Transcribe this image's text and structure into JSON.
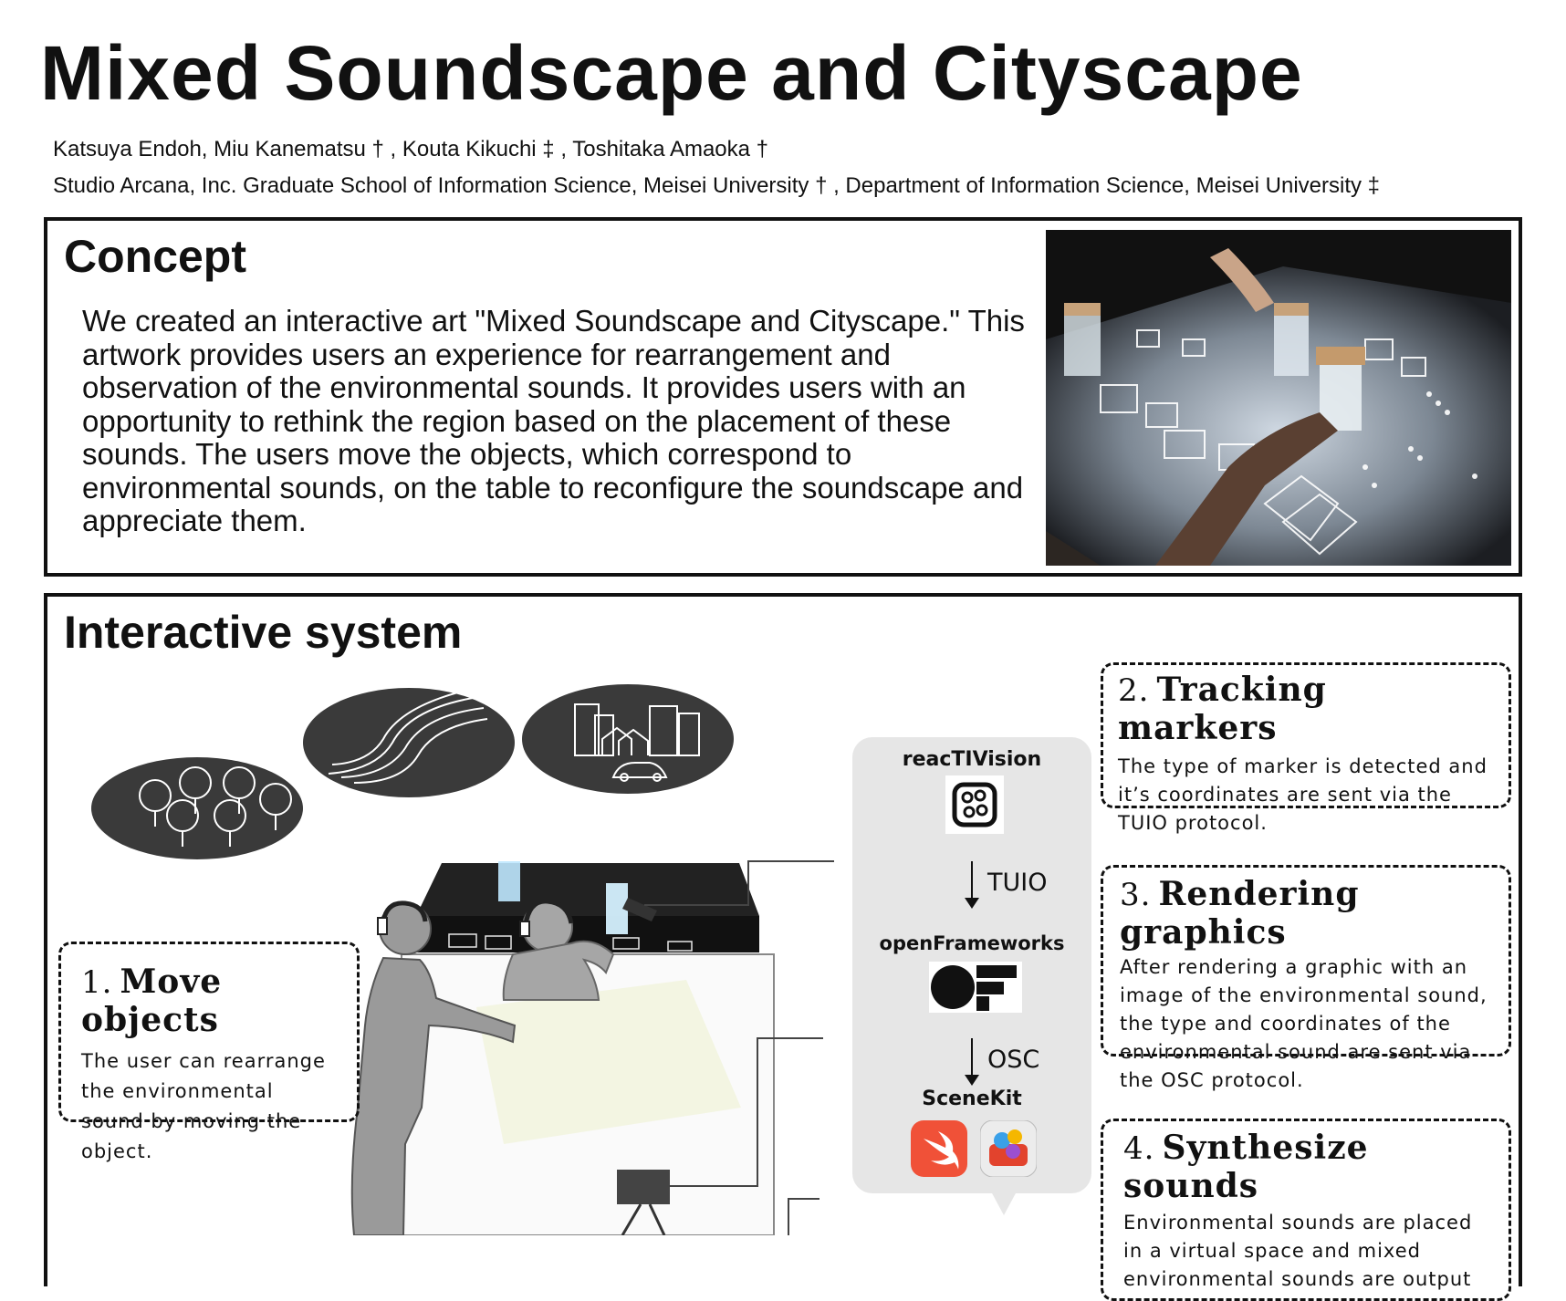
{
  "header": {
    "title": "Mixed Soundscape and Cityscape",
    "authors": "Katsuya Endoh, Miu Kanematsu † , Kouta Kikuchi ‡ , Toshitaka Amaoka †",
    "affiliations": "Studio Arcana, Inc. Graduate School of Information Science, Meisei University † , Department of Information Science, Meisei University ‡"
  },
  "concept": {
    "heading": "Concept",
    "body": "We created an interactive art \"Mixed Soundscape and Cityscape.\" This artwork provides users an experience for rearrangement and observation of the environmental sounds. It provides users with an opportunity to rethink the region based on the placement of these sounds. The users move the objects, which correspond to environmental sounds, on the table to reconfigure the soundscape and appreciate them."
  },
  "system": {
    "heading": "Interactive system",
    "steps": [
      {
        "number": "1.",
        "title": "Move objects",
        "text": "The user can rearrange the environmental sound by moving the object."
      },
      {
        "number": "2.",
        "title": "Tracking markers",
        "text": "The type of marker is detected and it’s coordinates are sent via the TUIO protocol."
      },
      {
        "number": "3.",
        "title": "Rendering graphics",
        "text": "After rendering a graphic with an image of the environmental sound, the type and coordinates of the environmental sound are sent via the OSC protocol."
      },
      {
        "number": "4.",
        "title": "Synthesize sounds",
        "text": "Environmental sounds are placed in a virtual space and mixed environmental sounds are output"
      }
    ],
    "software": {
      "reactivision": "reacTIVision",
      "openframeworks": "openFrameworks",
      "scenekit": "SceneKit",
      "tuio": "TUIO",
      "osc": "OSC"
    }
  },
  "colors": {
    "swift_orange": "#f05138",
    "bubble": "#3a3a3a",
    "panel_gray": "#e6e6e6"
  }
}
